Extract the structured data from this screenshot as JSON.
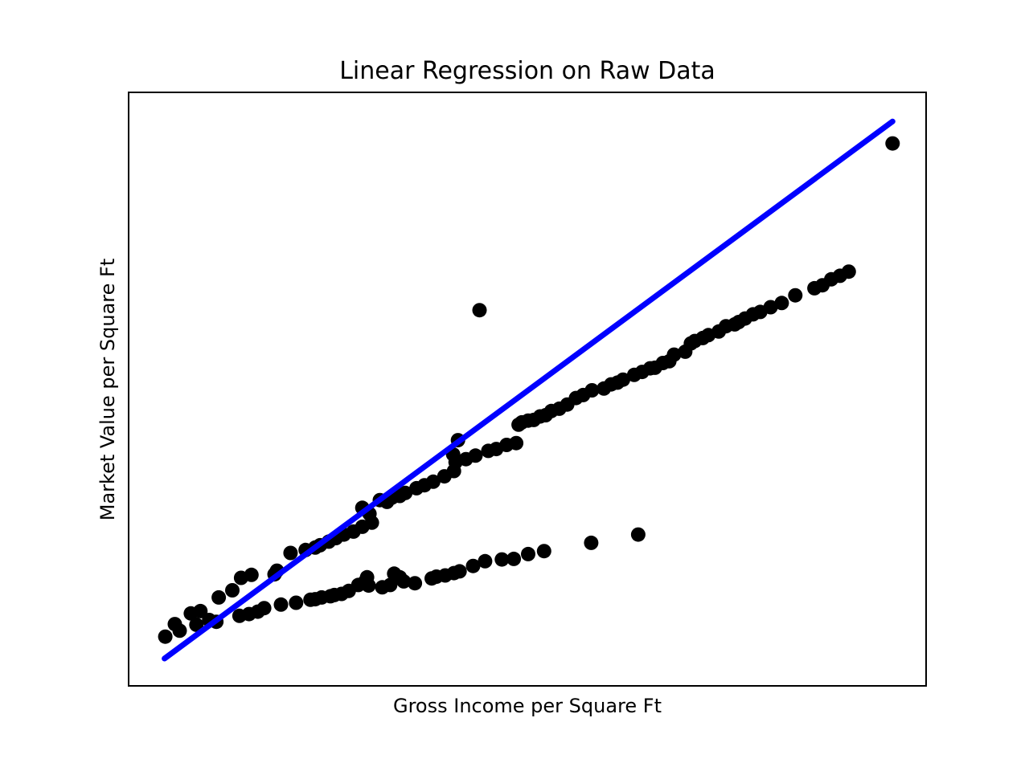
{
  "chart_data": {
    "type": "scatter",
    "title": "Linear Regression on Raw Data",
    "xlabel": "Gross Income per Square Ft",
    "ylabel": "Market Value per Square Ft",
    "xlim": [
      0,
      100
    ],
    "ylim": [
      0,
      100
    ],
    "ticks_visible": false,
    "grid": false,
    "legend": "none",
    "colors": {
      "points": "#000000",
      "regression_line": "#0000ff",
      "frame": "#000000"
    },
    "series": [
      {
        "type": "scatter",
        "points": [
          [
            4.6,
            8.3
          ],
          [
            5.8,
            10.4
          ],
          [
            6.4,
            9.3
          ],
          [
            7.8,
            12.2
          ],
          [
            9.0,
            12.6
          ],
          [
            8.5,
            10.3
          ],
          [
            10.1,
            11.1
          ],
          [
            11.3,
            14.9
          ],
          [
            11.0,
            10.8
          ],
          [
            13.0,
            16.1
          ],
          [
            13.9,
            11.8
          ],
          [
            14.1,
            18.2
          ],
          [
            15.1,
            12.1
          ],
          [
            15.4,
            18.7
          ],
          [
            16.2,
            12.5
          ],
          [
            17.0,
            13.1
          ],
          [
            18.3,
            18.8
          ],
          [
            18.6,
            19.4
          ],
          [
            19.1,
            13.7
          ],
          [
            20.3,
            22.4
          ],
          [
            21.0,
            14.0
          ],
          [
            22.2,
            22.9
          ],
          [
            22.8,
            14.5
          ],
          [
            23.4,
            14.6
          ],
          [
            24.2,
            14.9
          ],
          [
            25.3,
            15.1
          ],
          [
            25.8,
            15.3
          ],
          [
            26.7,
            15.5
          ],
          [
            27.6,
            16.0
          ],
          [
            28.8,
            17.0
          ],
          [
            29.6,
            17.5
          ],
          [
            29.9,
            18.3
          ],
          [
            30.1,
            16.9
          ],
          [
            31.8,
            16.6
          ],
          [
            32.8,
            17.0
          ],
          [
            33.3,
            18.9
          ],
          [
            34.0,
            18.3
          ],
          [
            34.5,
            17.6
          ],
          [
            35.9,
            17.3
          ],
          [
            38.0,
            18.1
          ],
          [
            38.6,
            18.4
          ],
          [
            39.7,
            18.6
          ],
          [
            40.8,
            19.0
          ],
          [
            41.5,
            19.3
          ],
          [
            43.2,
            20.2
          ],
          [
            44.7,
            21.0
          ],
          [
            46.8,
            21.3
          ],
          [
            48.3,
            21.4
          ],
          [
            50.1,
            22.2
          ],
          [
            52.1,
            22.7
          ],
          [
            58.0,
            24.1
          ],
          [
            63.9,
            25.5
          ],
          [
            23.4,
            23.3
          ],
          [
            24.0,
            23.7
          ],
          [
            25.1,
            24.3
          ],
          [
            26.0,
            24.9
          ],
          [
            27.0,
            25.5
          ],
          [
            28.2,
            26.0
          ],
          [
            29.3,
            26.8
          ],
          [
            30.5,
            27.5
          ],
          [
            30.2,
            29.0
          ],
          [
            32.4,
            31.0
          ],
          [
            29.3,
            30.0
          ],
          [
            31.5,
            31.3
          ],
          [
            33.0,
            31.7
          ],
          [
            34.0,
            32.0
          ],
          [
            34.7,
            32.5
          ],
          [
            36.1,
            33.3
          ],
          [
            37.1,
            33.8
          ],
          [
            38.2,
            34.4
          ],
          [
            39.6,
            35.3
          ],
          [
            40.8,
            36.2
          ],
          [
            41.0,
            37.7
          ],
          [
            42.3,
            38.2
          ],
          [
            43.5,
            38.8
          ],
          [
            40.7,
            39.0
          ],
          [
            45.1,
            39.6
          ],
          [
            46.1,
            39.9
          ],
          [
            41.3,
            41.4
          ],
          [
            47.4,
            40.6
          ],
          [
            48.6,
            40.9
          ],
          [
            48.9,
            44.0
          ],
          [
            49.3,
            44.4
          ],
          [
            50.1,
            44.7
          ],
          [
            50.8,
            44.8
          ],
          [
            51.6,
            45.4
          ],
          [
            52.3,
            45.6
          ],
          [
            53.0,
            46.3
          ],
          [
            54.0,
            46.7
          ],
          [
            55.0,
            47.4
          ],
          [
            56.1,
            48.5
          ],
          [
            57.0,
            49.0
          ],
          [
            58.1,
            49.8
          ],
          [
            59.6,
            50.1
          ],
          [
            60.5,
            50.8
          ],
          [
            61.3,
            51.1
          ],
          [
            62.0,
            51.6
          ],
          [
            63.4,
            52.4
          ],
          [
            64.4,
            52.9
          ],
          [
            65.4,
            53.5
          ],
          [
            66.0,
            53.6
          ],
          [
            67.0,
            54.4
          ],
          [
            67.8,
            54.7
          ],
          [
            68.4,
            55.8
          ],
          [
            69.8,
            56.3
          ],
          [
            70.5,
            57.7
          ],
          [
            71.0,
            58.1
          ],
          [
            72.0,
            58.6
          ],
          [
            72.7,
            59.1
          ],
          [
            74.0,
            59.7
          ],
          [
            74.9,
            60.6
          ],
          [
            76.0,
            60.9
          ],
          [
            76.5,
            61.3
          ],
          [
            77.3,
            61.9
          ],
          [
            78.3,
            62.6
          ],
          [
            79.2,
            63.0
          ],
          [
            80.5,
            63.8
          ],
          [
            81.9,
            64.5
          ],
          [
            83.6,
            65.8
          ],
          [
            86.0,
            67.0
          ],
          [
            87.0,
            67.5
          ],
          [
            88.1,
            68.5
          ],
          [
            89.2,
            69.1
          ],
          [
            90.3,
            69.8
          ],
          [
            44.0,
            63.3
          ],
          [
            95.8,
            91.4
          ]
        ]
      },
      {
        "type": "line",
        "points": [
          [
            4.5,
            4.6
          ],
          [
            95.8,
            95.1
          ]
        ]
      }
    ]
  }
}
